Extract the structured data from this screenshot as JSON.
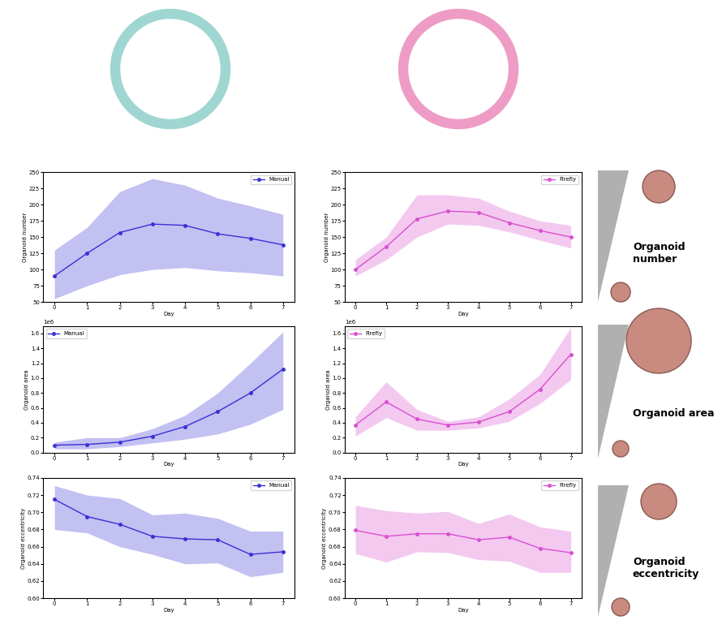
{
  "chart_data": [
    {
      "type": "line",
      "title": "",
      "x_label": "Day",
      "y_label": "Organoid number",
      "x": [
        0,
        1,
        2,
        3,
        4,
        5,
        6,
        7
      ],
      "xlim": [
        -0.35,
        7.35
      ],
      "xticks": [
        0,
        1,
        2,
        3,
        4,
        5,
        6,
        7
      ],
      "ylim": [
        50,
        250
      ],
      "yticks": [
        50,
        75,
        100,
        125,
        150,
        175,
        200,
        225,
        250
      ],
      "legend": "upper right",
      "series": [
        {
          "name": "Manual",
          "color": "#3b2fd6",
          "marker": "o",
          "values": [
            90,
            125,
            157,
            170,
            168,
            155,
            148,
            138
          ],
          "lower": [
            55,
            75,
            92,
            100,
            103,
            98,
            95,
            90
          ],
          "upper": [
            130,
            165,
            220,
            240,
            230,
            210,
            198,
            185
          ]
        }
      ]
    },
    {
      "type": "line",
      "title": "",
      "x_label": "Day",
      "y_label": "Organoid number",
      "x": [
        0,
        1,
        2,
        3,
        4,
        5,
        6,
        7
      ],
      "xlim": [
        -0.35,
        7.35
      ],
      "xticks": [
        0,
        1,
        2,
        3,
        4,
        5,
        6,
        7
      ],
      "ylim": [
        50,
        250
      ],
      "yticks": [
        50,
        75,
        100,
        125,
        150,
        175,
        200,
        225,
        250
      ],
      "legend": "upper right",
      "series": [
        {
          "name": "Firefly",
          "color": "#d94fd0",
          "marker": "o",
          "values": [
            100,
            135,
            178,
            190,
            188,
            172,
            160,
            150
          ],
          "lower": [
            90,
            115,
            150,
            170,
            168,
            158,
            145,
            133
          ],
          "upper": [
            115,
            150,
            215,
            215,
            210,
            190,
            175,
            168
          ]
        }
      ]
    },
    {
      "type": "line",
      "title": "",
      "x_label": "Day",
      "y_label": "Organoid area",
      "annotations": [
        "1e6"
      ],
      "x": [
        0,
        1,
        2,
        3,
        4,
        5,
        6,
        7
      ],
      "xlim": [
        -0.35,
        7.35
      ],
      "xticks": [
        0,
        1,
        2,
        3,
        4,
        5,
        6,
        7
      ],
      "ylim": [
        0,
        1.7
      ],
      "yticks": [
        0.0,
        0.2,
        0.4,
        0.6,
        0.8,
        1.0,
        1.2,
        1.4,
        1.6
      ],
      "legend": "upper left",
      "series": [
        {
          "name": "Manual",
          "color": "#3b2fd6",
          "marker": "o",
          "values": [
            0.1,
            0.11,
            0.14,
            0.22,
            0.35,
            0.55,
            0.8,
            1.12
          ],
          "lower": [
            0.05,
            0.05,
            0.08,
            0.13,
            0.18,
            0.25,
            0.38,
            0.58
          ],
          "upper": [
            0.14,
            0.2,
            0.2,
            0.32,
            0.5,
            0.8,
            1.2,
            1.62
          ]
        }
      ]
    },
    {
      "type": "line",
      "title": "",
      "x_label": "Day",
      "y_label": "Organoid area",
      "annotations": [
        "1e6"
      ],
      "x": [
        0,
        1,
        2,
        3,
        4,
        5,
        6,
        7
      ],
      "xlim": [
        -0.35,
        7.35
      ],
      "xticks": [
        0,
        1,
        2,
        3,
        4,
        5,
        6,
        7
      ],
      "ylim": [
        0,
        1.7
      ],
      "yticks": [
        0.0,
        0.2,
        0.4,
        0.6,
        0.8,
        1.0,
        1.2,
        1.4,
        1.6
      ],
      "legend": "upper left",
      "series": [
        {
          "name": "Firefly",
          "color": "#d94fd0",
          "marker": "o",
          "values": [
            0.37,
            0.68,
            0.45,
            0.37,
            0.41,
            0.55,
            0.85,
            1.32
          ],
          "lower": [
            0.22,
            0.47,
            0.3,
            0.3,
            0.33,
            0.42,
            0.66,
            0.98
          ],
          "upper": [
            0.48,
            0.95,
            0.58,
            0.42,
            0.48,
            0.72,
            1.05,
            1.68
          ]
        }
      ]
    },
    {
      "type": "line",
      "title": "",
      "x_label": "Day",
      "y_label": "Organoid eccentricity",
      "x": [
        0,
        1,
        2,
        3,
        4,
        5,
        6,
        7
      ],
      "xlim": [
        -0.35,
        7.35
      ],
      "xticks": [
        0,
        1,
        2,
        3,
        4,
        5,
        6,
        7
      ],
      "ylim": [
        0.6,
        0.74
      ],
      "yticks": [
        {
          "value": 0.6,
          "label": "0.60"
        },
        {
          "value": 0.62,
          "label": "0.62"
        },
        {
          "value": 0.64,
          "label": "0.64"
        },
        {
          "value": 0.66,
          "label": "0.66"
        },
        {
          "value": 0.68,
          "label": "0.68"
        },
        {
          "value": 0.7,
          "label": "0.70"
        },
        {
          "value": 0.72,
          "label": "0.72"
        },
        {
          "value": 0.74,
          "label": "0.74"
        }
      ],
      "legend": "upper right",
      "series": [
        {
          "name": "Manual",
          "color": "#3b2fd6",
          "marker": "o",
          "values": [
            0.715,
            0.695,
            0.686,
            0.672,
            0.669,
            0.668,
            0.651,
            0.654
          ],
          "lower": [
            0.68,
            0.676,
            0.66,
            0.651,
            0.64,
            0.641,
            0.625,
            0.63
          ],
          "upper": [
            0.731,
            0.72,
            0.716,
            0.697,
            0.699,
            0.693,
            0.678,
            0.678
          ]
        }
      ]
    },
    {
      "type": "line",
      "title": "",
      "x_label": "Day",
      "y_label": "Organoid eccentricity",
      "x": [
        0,
        1,
        2,
        3,
        4,
        5,
        6,
        7
      ],
      "xlim": [
        -0.35,
        7.35
      ],
      "xticks": [
        0,
        1,
        2,
        3,
        4,
        5,
        6,
        7
      ],
      "ylim": [
        0.6,
        0.74
      ],
      "yticks": [
        {
          "value": 0.6,
          "label": "0.60"
        },
        {
          "value": 0.62,
          "label": "0.62"
        },
        {
          "value": 0.64,
          "label": "0.64"
        },
        {
          "value": 0.66,
          "label": "0.66"
        },
        {
          "value": 0.68,
          "label": "0.68"
        },
        {
          "value": 0.7,
          "label": "0.70"
        },
        {
          "value": 0.72,
          "label": "0.72"
        },
        {
          "value": 0.74,
          "label": "0.74"
        }
      ],
      "legend": "upper right",
      "series": [
        {
          "name": "Firefly",
          "color": "#d94fd0",
          "marker": "o",
          "values": [
            0.679,
            0.672,
            0.675,
            0.675,
            0.668,
            0.671,
            0.658,
            0.653
          ],
          "lower": [
            0.652,
            0.642,
            0.654,
            0.653,
            0.645,
            0.643,
            0.63,
            0.63
          ],
          "upper": [
            0.708,
            0.702,
            0.699,
            0.701,
            0.687,
            0.698,
            0.683,
            0.678
          ]
        }
      ]
    }
  ],
  "side_labels": [
    "Organoid number",
    "Organoid area",
    "Organoid eccentricity"
  ]
}
